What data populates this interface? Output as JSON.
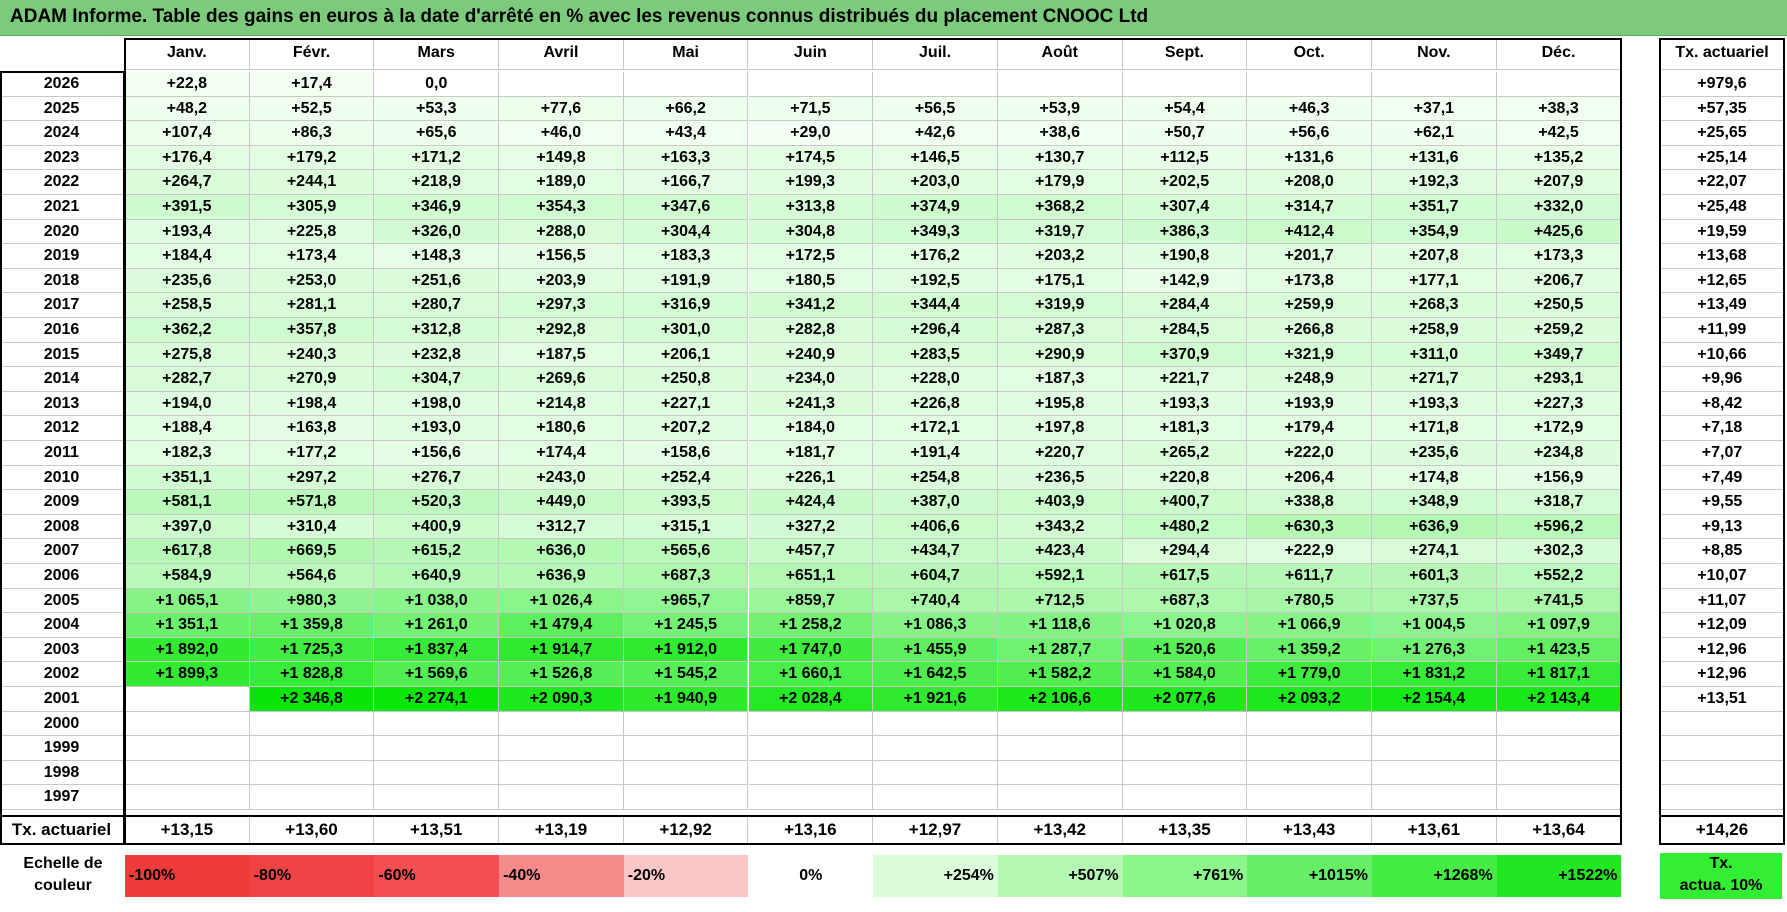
{
  "title": "ADAM Informe. Table des gains en euros à la date d'arrêté en % avec les revenus connus distribués du placement CNOOC Ltd",
  "months": [
    "Janv.",
    "Févr.",
    "Mars",
    "Avril",
    "Mai",
    "Juin",
    "Juil.",
    "Août",
    "Sept.",
    "Oct.",
    "Nov.",
    "Déc."
  ],
  "tx_header": "Tx. actuariel",
  "rows": [
    {
      "year": "2026",
      "values": [
        "+22,8",
        "+17,4",
        "0,0",
        "",
        "",
        "",
        "",
        "",
        "",
        "",
        "",
        ""
      ],
      "tx": "+979,6"
    },
    {
      "year": "2025",
      "values": [
        "+48,2",
        "+52,5",
        "+53,3",
        "+77,6",
        "+66,2",
        "+71,5",
        "+56,5",
        "+53,9",
        "+54,4",
        "+46,3",
        "+37,1",
        "+38,3"
      ],
      "tx": "+57,35"
    },
    {
      "year": "2024",
      "values": [
        "+107,4",
        "+86,3",
        "+65,6",
        "+46,0",
        "+43,4",
        "+29,0",
        "+42,6",
        "+38,6",
        "+50,7",
        "+56,6",
        "+62,1",
        "+42,5"
      ],
      "tx": "+25,65"
    },
    {
      "year": "2023",
      "values": [
        "+176,4",
        "+179,2",
        "+171,2",
        "+149,8",
        "+163,3",
        "+174,5",
        "+146,5",
        "+130,7",
        "+112,5",
        "+131,6",
        "+131,6",
        "+135,2"
      ],
      "tx": "+25,14"
    },
    {
      "year": "2022",
      "values": [
        "+264,7",
        "+244,1",
        "+218,9",
        "+189,0",
        "+166,7",
        "+199,3",
        "+203,0",
        "+179,9",
        "+202,5",
        "+208,0",
        "+192,3",
        "+207,9"
      ],
      "tx": "+22,07"
    },
    {
      "year": "2021",
      "values": [
        "+391,5",
        "+305,9",
        "+346,9",
        "+354,3",
        "+347,6",
        "+313,8",
        "+374,9",
        "+368,2",
        "+307,4",
        "+314,7",
        "+351,7",
        "+332,0"
      ],
      "tx": "+25,48"
    },
    {
      "year": "2020",
      "values": [
        "+193,4",
        "+225,8",
        "+326,0",
        "+288,0",
        "+304,4",
        "+304,8",
        "+349,3",
        "+319,7",
        "+386,3",
        "+412,4",
        "+354,9",
        "+425,6"
      ],
      "tx": "+19,59"
    },
    {
      "year": "2019",
      "values": [
        "+184,4",
        "+173,4",
        "+148,3",
        "+156,5",
        "+183,3",
        "+172,5",
        "+176,2",
        "+203,2",
        "+190,8",
        "+201,7",
        "+207,8",
        "+173,3"
      ],
      "tx": "+13,68"
    },
    {
      "year": "2018",
      "values": [
        "+235,6",
        "+253,0",
        "+251,6",
        "+203,9",
        "+191,9",
        "+180,5",
        "+192,5",
        "+175,1",
        "+142,9",
        "+173,8",
        "+177,1",
        "+206,7"
      ],
      "tx": "+12,65"
    },
    {
      "year": "2017",
      "values": [
        "+258,5",
        "+281,1",
        "+280,7",
        "+297,3",
        "+316,9",
        "+341,2",
        "+344,4",
        "+319,9",
        "+284,4",
        "+259,9",
        "+268,3",
        "+250,5"
      ],
      "tx": "+13,49"
    },
    {
      "year": "2016",
      "values": [
        "+362,2",
        "+357,8",
        "+312,8",
        "+292,8",
        "+301,0",
        "+282,8",
        "+296,4",
        "+287,3",
        "+284,5",
        "+266,8",
        "+258,9",
        "+259,2"
      ],
      "tx": "+11,99"
    },
    {
      "year": "2015",
      "values": [
        "+275,8",
        "+240,3",
        "+232,8",
        "+187,5",
        "+206,1",
        "+240,9",
        "+283,5",
        "+290,9",
        "+370,9",
        "+321,9",
        "+311,0",
        "+349,7"
      ],
      "tx": "+10,66"
    },
    {
      "year": "2014",
      "values": [
        "+282,7",
        "+270,9",
        "+304,7",
        "+269,6",
        "+250,8",
        "+234,0",
        "+228,0",
        "+187,3",
        "+221,7",
        "+248,9",
        "+271,7",
        "+293,1"
      ],
      "tx": "+9,96"
    },
    {
      "year": "2013",
      "values": [
        "+194,0",
        "+198,4",
        "+198,0",
        "+214,8",
        "+227,1",
        "+241,3",
        "+226,8",
        "+195,8",
        "+193,3",
        "+193,9",
        "+193,3",
        "+227,3"
      ],
      "tx": "+8,42"
    },
    {
      "year": "2012",
      "values": [
        "+188,4",
        "+163,8",
        "+193,0",
        "+180,6",
        "+207,2",
        "+184,0",
        "+172,1",
        "+197,8",
        "+181,3",
        "+179,4",
        "+171,8",
        "+172,9"
      ],
      "tx": "+7,18"
    },
    {
      "year": "2011",
      "values": [
        "+182,3",
        "+177,2",
        "+156,6",
        "+174,4",
        "+158,6",
        "+181,7",
        "+191,4",
        "+220,7",
        "+265,2",
        "+222,0",
        "+235,6",
        "+234,8"
      ],
      "tx": "+7,07"
    },
    {
      "year": "2010",
      "values": [
        "+351,1",
        "+297,2",
        "+276,7",
        "+243,0",
        "+252,4",
        "+226,1",
        "+254,8",
        "+236,5",
        "+220,8",
        "+206,4",
        "+174,8",
        "+156,9"
      ],
      "tx": "+7,49"
    },
    {
      "year": "2009",
      "values": [
        "+581,1",
        "+571,8",
        "+520,3",
        "+449,0",
        "+393,5",
        "+424,4",
        "+387,0",
        "+403,9",
        "+400,7",
        "+338,8",
        "+348,9",
        "+318,7"
      ],
      "tx": "+9,55"
    },
    {
      "year": "2008",
      "values": [
        "+397,0",
        "+310,4",
        "+400,9",
        "+312,7",
        "+315,1",
        "+327,2",
        "+406,6",
        "+343,2",
        "+480,2",
        "+630,3",
        "+636,9",
        "+596,2"
      ],
      "tx": "+9,13"
    },
    {
      "year": "2007",
      "values": [
        "+617,8",
        "+669,5",
        "+615,2",
        "+636,0",
        "+565,6",
        "+457,7",
        "+434,7",
        "+423,4",
        "+294,4",
        "+222,9",
        "+274,1",
        "+302,3"
      ],
      "tx": "+8,85"
    },
    {
      "year": "2006",
      "values": [
        "+584,9",
        "+564,6",
        "+640,9",
        "+636,9",
        "+687,3",
        "+651,1",
        "+604,7",
        "+592,1",
        "+617,5",
        "+611,7",
        "+601,3",
        "+552,2"
      ],
      "tx": "+10,07"
    },
    {
      "year": "2005",
      "values": [
        "+1 065,1",
        "+980,3",
        "+1 038,0",
        "+1 026,4",
        "+965,7",
        "+859,7",
        "+740,4",
        "+712,5",
        "+687,3",
        "+780,5",
        "+737,5",
        "+741,5"
      ],
      "tx": "+11,07"
    },
    {
      "year": "2004",
      "values": [
        "+1 351,1",
        "+1 359,8",
        "+1 261,0",
        "+1 479,4",
        "+1 245,5",
        "+1 258,2",
        "+1 086,3",
        "+1 118,6",
        "+1 020,8",
        "+1 066,9",
        "+1 004,5",
        "+1 097,9"
      ],
      "tx": "+12,09"
    },
    {
      "year": "2003",
      "values": [
        "+1 892,0",
        "+1 725,3",
        "+1 837,4",
        "+1 914,7",
        "+1 912,0",
        "+1 747,0",
        "+1 455,9",
        "+1 287,7",
        "+1 520,6",
        "+1 359,2",
        "+1 276,3",
        "+1 423,5"
      ],
      "tx": "+12,96"
    },
    {
      "year": "2002",
      "values": [
        "+1 899,3",
        "+1 828,8",
        "+1 569,6",
        "+1 526,8",
        "+1 545,2",
        "+1 660,1",
        "+1 642,5",
        "+1 582,2",
        "+1 584,0",
        "+1 779,0",
        "+1 831,2",
        "+1 817,1"
      ],
      "tx": "+12,96"
    },
    {
      "year": "2001",
      "values": [
        "",
        "+2 346,8",
        "+2 274,1",
        "+2 090,3",
        "+1 940,9",
        "+2 028,4",
        "+1 921,6",
        "+2 106,6",
        "+2 077,6",
        "+2 093,2",
        "+2 154,4",
        "+2 143,4"
      ],
      "tx": "+13,51"
    },
    {
      "year": "2000",
      "values": [
        "",
        "",
        "",
        "",
        "",
        "",
        "",
        "",
        "",
        "",
        "",
        ""
      ],
      "tx": ""
    },
    {
      "year": "1999",
      "values": [
        "",
        "",
        "",
        "",
        "",
        "",
        "",
        "",
        "",
        "",
        "",
        ""
      ],
      "tx": ""
    },
    {
      "year": "1998",
      "values": [
        "",
        "",
        "",
        "",
        "",
        "",
        "",
        "",
        "",
        "",
        "",
        ""
      ],
      "tx": ""
    },
    {
      "year": "1997",
      "values": [
        "",
        "",
        "",
        "",
        "",
        "",
        "",
        "",
        "",
        "",
        "",
        ""
      ],
      "tx": ""
    }
  ],
  "footer": {
    "label": "Tx. actuariel",
    "values": [
      "+13,15",
      "+13,60",
      "+13,51",
      "+13,19",
      "+12,92",
      "+13,16",
      "+12,97",
      "+13,42",
      "+13,35",
      "+13,43",
      "+13,61",
      "+13,64"
    ],
    "tx": "+14,26"
  },
  "scale": {
    "label_line1": "Echelle de",
    "label_line2": "couleur",
    "items": [
      {
        "text": "-100%",
        "color": "#ee3b3b",
        "align": "left"
      },
      {
        "text": "-80%",
        "color": "#f04444",
        "align": "left"
      },
      {
        "text": "-60%",
        "color": "#f34f52",
        "align": "left"
      },
      {
        "text": "-40%",
        "color": "#f58a8a",
        "align": "left"
      },
      {
        "text": "-20%",
        "color": "#fcc6c6",
        "align": "left"
      },
      {
        "text": "0%",
        "color": "#ffffff",
        "align": "center"
      },
      {
        "text": "+254%",
        "color": "#dcfddc",
        "align": "right"
      },
      {
        "text": "+507%",
        "color": "#b4f8b4",
        "align": "right"
      },
      {
        "text": "+761%",
        "color": "#8cf58c",
        "align": "right"
      },
      {
        "text": "+1015%",
        "color": "#66ef66",
        "align": "right"
      },
      {
        "text": "+1268%",
        "color": "#44ec44",
        "align": "right"
      },
      {
        "text": "+1522%",
        "color": "#22e622",
        "align": "right"
      }
    ],
    "actua_line1": "Tx.",
    "actua_line2": "actua. 10%"
  }
}
